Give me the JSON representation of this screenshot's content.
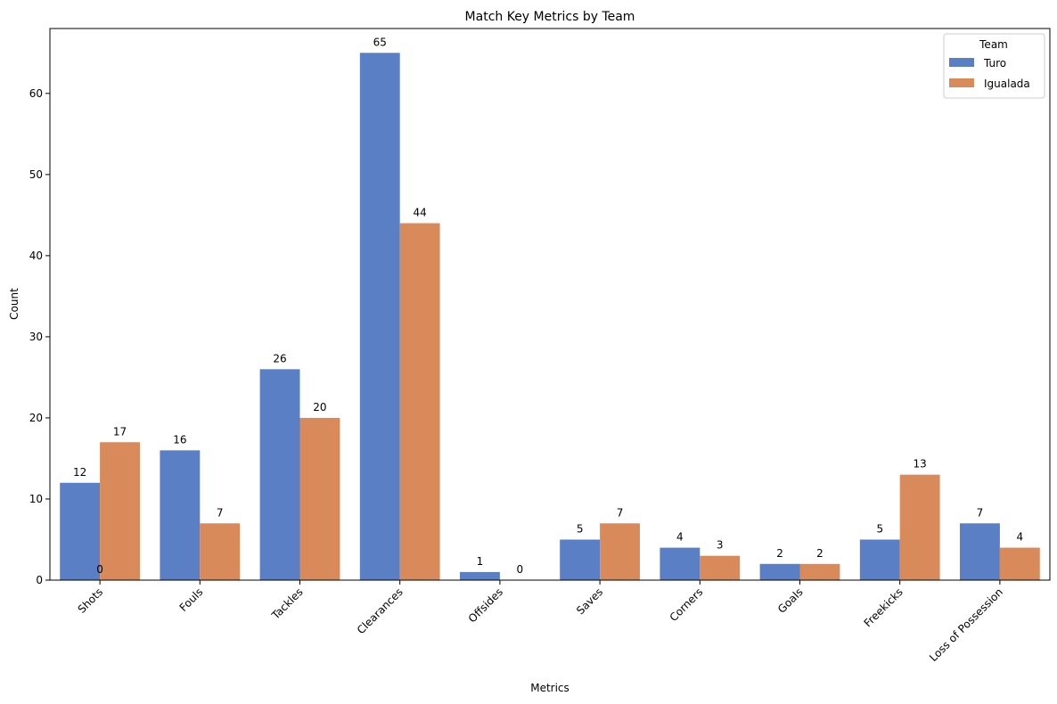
{
  "chart_data": {
    "type": "bar",
    "title": "Match Key Metrics by Team",
    "xlabel": "Metrics",
    "ylabel": "Count",
    "categories": [
      "Shots",
      "Fouls",
      "Tackles",
      "Clearances",
      "Offsides",
      "Saves",
      "Corners",
      "Goals",
      "Freekicks",
      "Loss of Possession"
    ],
    "series": [
      {
        "name": "Turo",
        "color": "#5b7fc4",
        "values": [
          12,
          16,
          26,
          65,
          1,
          5,
          4,
          2,
          5,
          7
        ]
      },
      {
        "name": "Igualada",
        "color": "#d98a5b",
        "values": [
          17,
          7,
          20,
          44,
          0,
          7,
          3,
          2,
          13,
          4
        ]
      }
    ],
    "extra_annotations": [
      {
        "category": "Shots",
        "text": "0"
      }
    ],
    "ylim": [
      0,
      68
    ],
    "yticks": [
      0,
      10,
      20,
      30,
      40,
      50,
      60
    ],
    "grid": false,
    "legend": {
      "title": "Team",
      "placement": "top-right"
    }
  }
}
